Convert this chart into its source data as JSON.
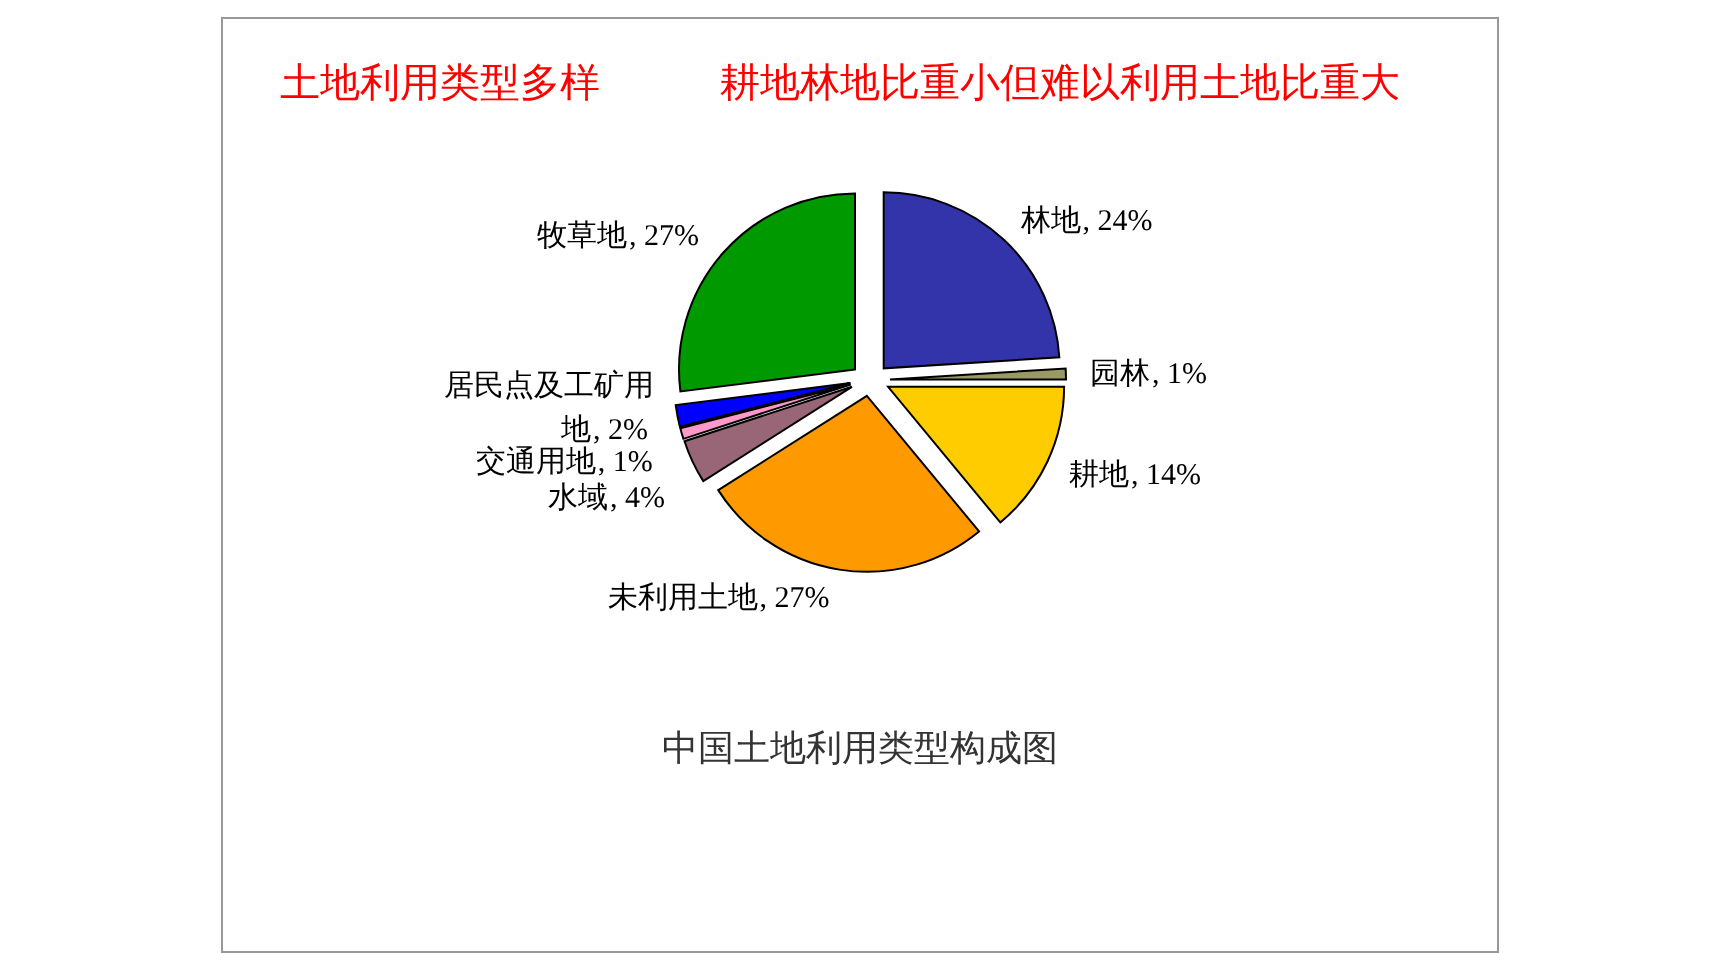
{
  "chart_data": {
    "type": "pie",
    "title": "土地利用类型多样",
    "subtitle": "耕地林地比重小但难以利用土地比重大",
    "categories": [
      "林地",
      "园林",
      "耕地",
      "未利用土地",
      "水域",
      "交通用地",
      "居民点及工矿用地",
      "牧草地"
    ],
    "values": [
      24,
      1,
      14,
      27,
      4,
      1,
      2,
      27
    ],
    "value_labels": [
      ", 24%",
      ", 1%",
      ", 14%",
      ", 27%",
      ", 4%",
      ", 1%",
      ", 2%",
      ", 27%"
    ],
    "colors": [
      "#3333aa",
      "#999966",
      "#ffcc00",
      "#ff9900",
      "#996677",
      "#ff99cc",
      "#0000ff",
      "#009900"
    ],
    "annotations": [
      "中国土地利用类型构成图"
    ],
    "legend": false
  }
}
